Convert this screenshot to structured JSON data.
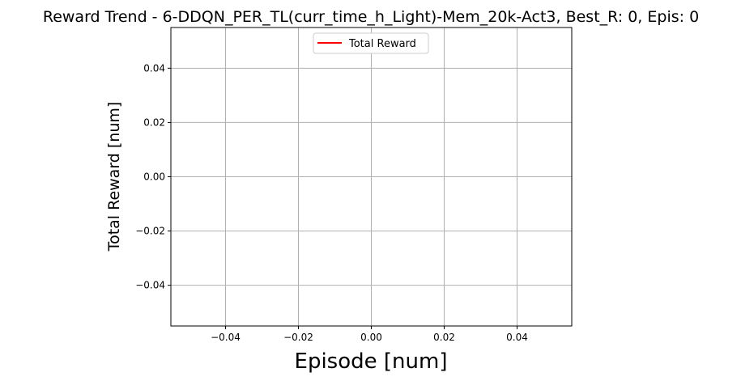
{
  "chart_data": {
    "type": "line",
    "title": "Reward Trend - 6-DDQN_PER_TL(curr_time_h_Light)-Mem_20k-Act3, Best_R: 0, Epis: 0",
    "xlabel": "Episode [num]",
    "ylabel": "Total Reward [num]",
    "xlim": [
      -0.055,
      0.055
    ],
    "ylim": [
      -0.055,
      0.055
    ],
    "xticks": [
      -0.04,
      -0.02,
      0.0,
      0.02,
      0.04
    ],
    "yticks": [
      -0.04,
      -0.02,
      0.0,
      0.02,
      0.04
    ],
    "xtick_labels": [
      "−0.04",
      "−0.02",
      "0.00",
      "0.02",
      "0.04"
    ],
    "ytick_labels": [
      "−0.04",
      "−0.02",
      "0.00",
      "0.02",
      "0.04"
    ],
    "grid": true,
    "legend_position": "top-center",
    "series": [
      {
        "name": "Total Reward",
        "color": "#ff0000",
        "x": [],
        "y": []
      }
    ]
  }
}
